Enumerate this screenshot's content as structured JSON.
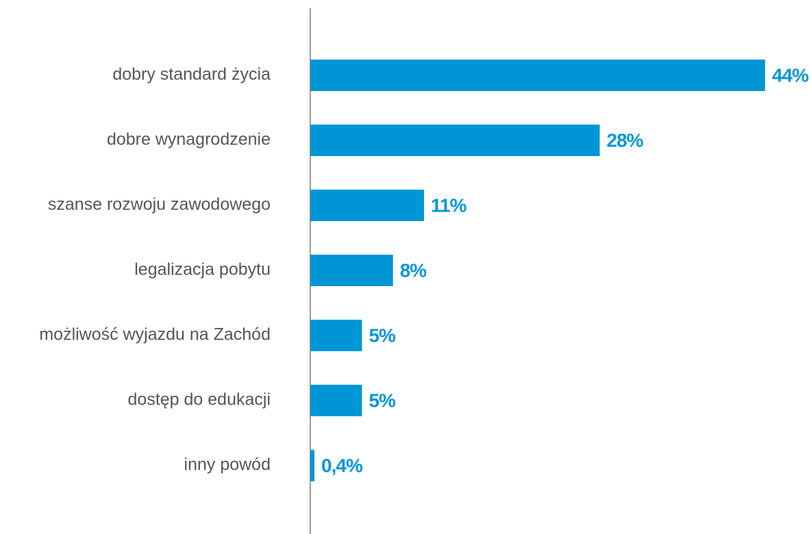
{
  "chart_data": {
    "type": "barh",
    "categories": [
      "dobry standard życia",
      "dobre wynagrodzenie",
      "szanse rozwoju zawodowego",
      "legalizacja pobytu",
      "możliwość wyjazdu na Zachód",
      "dostęp do edukacji",
      "inny powód"
    ],
    "values": [
      44,
      28,
      11,
      8,
      5,
      5,
      0.4
    ],
    "value_labels": [
      "44%",
      "28%",
      "11%",
      "8%",
      "5%",
      "5%",
      "0,4%"
    ],
    "color": "#0096d6",
    "xlim": [
      0,
      44
    ]
  }
}
